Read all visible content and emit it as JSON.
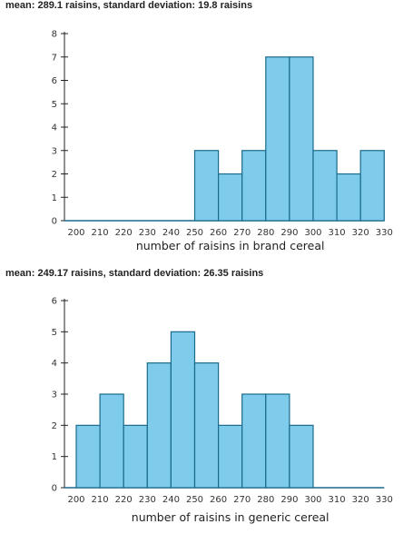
{
  "chart_data": [
    {
      "type": "bar",
      "title": "mean: 289.1 raisins, standard deviation: 19.8 raisins",
      "xlabel": "number of raisins in brand cereal",
      "ylabel": "",
      "x_ticks": [
        200,
        210,
        220,
        230,
        240,
        250,
        260,
        270,
        280,
        290,
        300,
        310,
        320,
        330
      ],
      "y_ticks": [
        0,
        1,
        2,
        3,
        4,
        5,
        6,
        7,
        8
      ],
      "ylim": [
        0,
        8
      ],
      "xlim": [
        200,
        330
      ],
      "bins": [
        {
          "start": 250,
          "end": 260,
          "count": 3
        },
        {
          "start": 260,
          "end": 270,
          "count": 2
        },
        {
          "start": 270,
          "end": 280,
          "count": 3
        },
        {
          "start": 280,
          "end": 290,
          "count": 7
        },
        {
          "start": 290,
          "end": 300,
          "count": 7
        },
        {
          "start": 300,
          "end": 310,
          "count": 3
        },
        {
          "start": 310,
          "end": 320,
          "count": 2
        },
        {
          "start": 320,
          "end": 330,
          "count": 3
        }
      ],
      "bar_color": "#7fcbeb",
      "bar_edge_color": "#1a6a8c",
      "grid": false
    },
    {
      "type": "bar",
      "title": "mean: 249.17 raisins, standard deviation: 26.35 raisins",
      "xlabel": "number of raisins in generic cereal",
      "ylabel": "",
      "x_ticks": [
        200,
        210,
        220,
        230,
        240,
        250,
        260,
        270,
        280,
        290,
        300,
        310,
        320,
        330
      ],
      "y_ticks": [
        0,
        1,
        2,
        3,
        4,
        5,
        6
      ],
      "ylim": [
        0,
        6
      ],
      "xlim": [
        200,
        330
      ],
      "bins": [
        {
          "start": 200,
          "end": 210,
          "count": 2
        },
        {
          "start": 210,
          "end": 220,
          "count": 3
        },
        {
          "start": 220,
          "end": 230,
          "count": 2
        },
        {
          "start": 230,
          "end": 240,
          "count": 4
        },
        {
          "start": 240,
          "end": 250,
          "count": 5
        },
        {
          "start": 250,
          "end": 260,
          "count": 4
        },
        {
          "start": 260,
          "end": 270,
          "count": 2
        },
        {
          "start": 270,
          "end": 280,
          "count": 3
        },
        {
          "start": 280,
          "end": 290,
          "count": 3
        },
        {
          "start": 290,
          "end": 300,
          "count": 2
        }
      ],
      "bar_color": "#7fcbeb",
      "bar_edge_color": "#1a6a8c",
      "grid": false
    }
  ]
}
